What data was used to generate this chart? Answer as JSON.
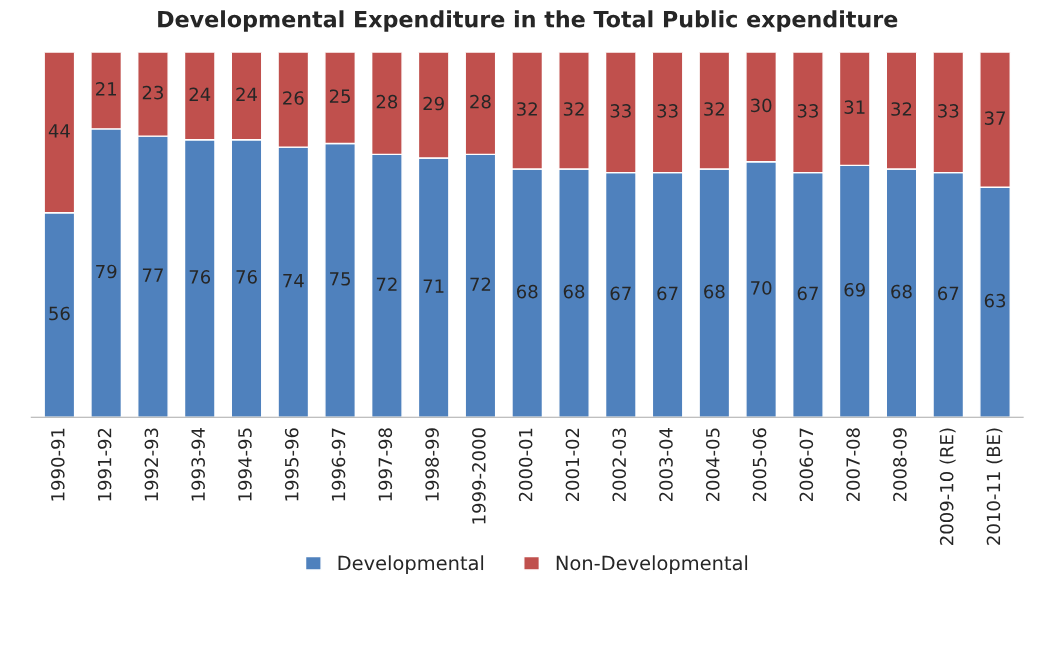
{
  "chart_data": {
    "type": "bar",
    "title": "Developmental Expenditure in the Total Public expenditure",
    "categories": [
      "1990-91",
      "1991-92",
      "1992-93",
      "1993-94",
      "1994-95",
      "1995-96",
      "1996-97",
      "1997-98",
      "1998-99",
      "1999-2000",
      "2000-01",
      "2001-02",
      "2002-03",
      "2003-04",
      "2004-05",
      "2005-06",
      "2006-07",
      "2007-08",
      "2008-09",
      "2009-10 (RE)",
      "2010-11 (BE)"
    ],
    "series": [
      {
        "name": "Developmental",
        "color": "#4f81bd",
        "values": [
          56,
          79,
          77,
          76,
          76,
          74,
          75,
          72,
          71,
          72,
          68,
          68,
          67,
          67,
          68,
          70,
          67,
          69,
          68,
          67,
          63
        ]
      },
      {
        "name": "Non-Developmental",
        "color": "#c0504d",
        "values": [
          44,
          21,
          23,
          24,
          24,
          26,
          25,
          28,
          29,
          28,
          32,
          32,
          33,
          33,
          32,
          30,
          33,
          31,
          32,
          33,
          37
        ]
      }
    ],
    "stacked": true,
    "data_labels": true,
    "legend": "bottom",
    "grid": false,
    "tick_labels": "x"
  }
}
